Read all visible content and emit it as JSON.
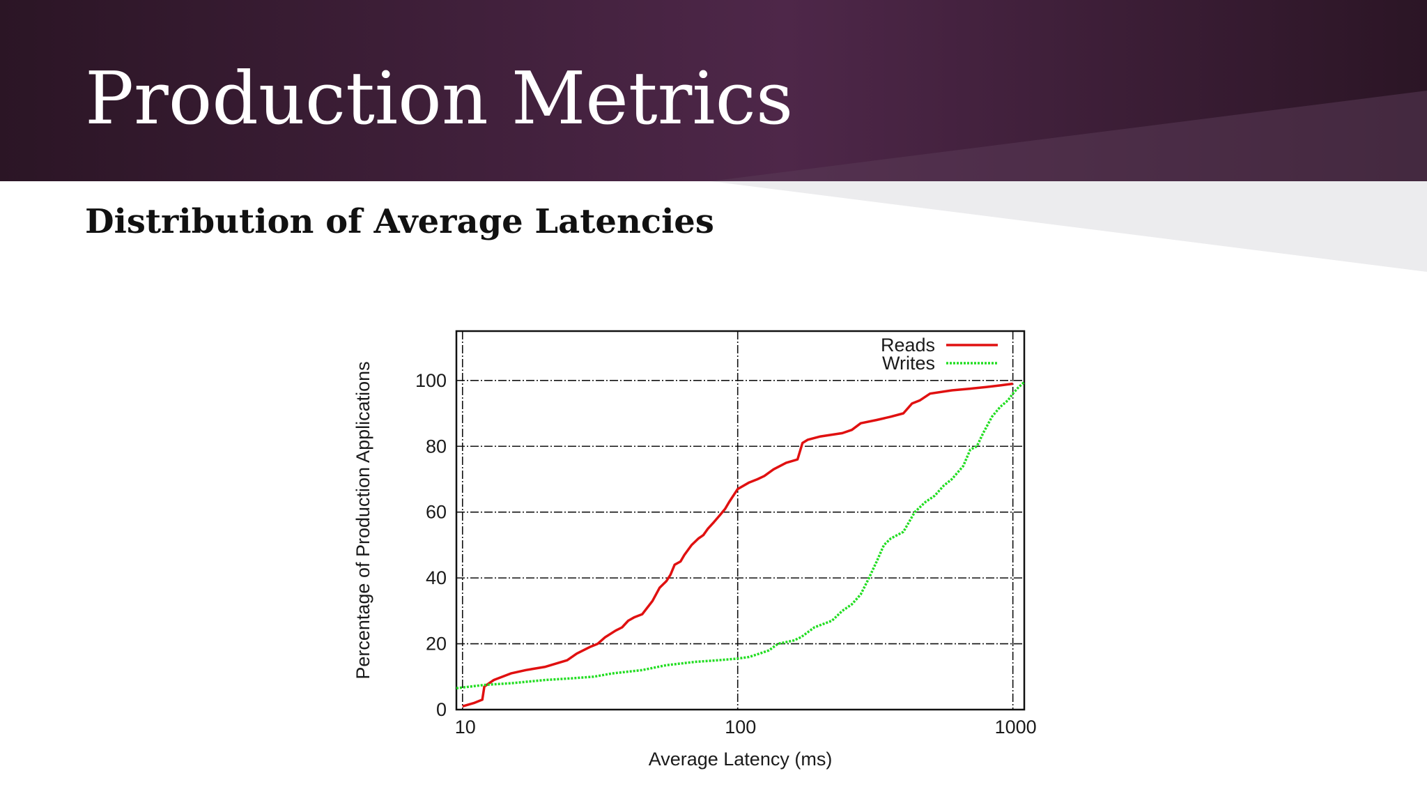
{
  "slide": {
    "title": "Production Metrics",
    "subtitle": "Distribution of Average Latencies"
  },
  "colors": {
    "banner_dark": "#2b1525",
    "banner_mid": "#4a2545",
    "reads": "#e01010",
    "writes": "#22dd22"
  },
  "chart_data": {
    "type": "line",
    "title": "",
    "xlabel": "Average Latency (ms)",
    "ylabel": "Percentage of Production Applications",
    "x_scale": "log",
    "xlim": [
      9.5,
      1100
    ],
    "ylim": [
      0,
      115
    ],
    "x_ticks": [
      10,
      100,
      1000
    ],
    "x_tick_labels": [
      "10",
      "100",
      "1000"
    ],
    "y_ticks": [
      0,
      20,
      40,
      60,
      80,
      100
    ],
    "y_tick_labels": [
      "0",
      "20",
      "40",
      "60",
      "80",
      "100"
    ],
    "grid": true,
    "legend_position": "top-right",
    "series": [
      {
        "name": "Reads",
        "color": "#e01010",
        "style": "solid",
        "x": [
          10,
          11,
          11.8,
          12,
          13,
          15,
          17,
          20,
          24,
          26,
          29,
          31,
          33,
          36,
          38,
          40,
          42,
          45,
          49,
          52,
          55,
          57,
          59,
          62,
          64,
          68,
          72,
          75,
          78,
          82,
          86,
          90,
          93,
          100,
          110,
          118,
          125,
          135,
          150,
          165,
          172,
          180,
          200,
          240,
          260,
          280,
          320,
          360,
          400,
          430,
          460,
          500,
          600,
          700,
          800,
          900,
          1000
        ],
        "y": [
          1,
          2,
          3,
          7,
          9,
          11,
          12,
          13,
          15,
          17,
          19,
          20,
          22,
          24,
          25,
          27,
          28,
          29,
          33,
          37,
          39,
          41,
          44,
          45,
          47,
          50,
          52,
          53,
          55,
          57,
          59,
          61,
          63,
          67,
          69,
          70,
          71,
          73,
          75,
          76,
          81,
          82,
          83,
          84,
          85,
          87,
          88,
          89,
          90,
          93,
          94,
          96,
          97,
          97.5,
          98,
          98.5,
          99
        ]
      },
      {
        "name": "Writes",
        "color": "#22dd22",
        "style": "dotted",
        "x": [
          9.5,
          12,
          15,
          20,
          25,
          30,
          35,
          45,
          55,
          70,
          85,
          100,
          110,
          120,
          130,
          140,
          160,
          170,
          190,
          220,
          240,
          260,
          280,
          300,
          320,
          340,
          360,
          400,
          440,
          480,
          520,
          560,
          600,
          660,
          700,
          740,
          780,
          840,
          900,
          960,
          1000,
          1050,
          1100
        ],
        "y": [
          6.5,
          7.5,
          8,
          9,
          9.5,
          10,
          11,
          12,
          13.5,
          14.5,
          15,
          15.5,
          16,
          17,
          18,
          20,
          21,
          22,
          25,
          27,
          30,
          32,
          35,
          40,
          45,
          50,
          52,
          54,
          60,
          63,
          65,
          68,
          70,
          74,
          79,
          80,
          84,
          89,
          92,
          94,
          96,
          98,
          99.5
        ]
      }
    ]
  }
}
